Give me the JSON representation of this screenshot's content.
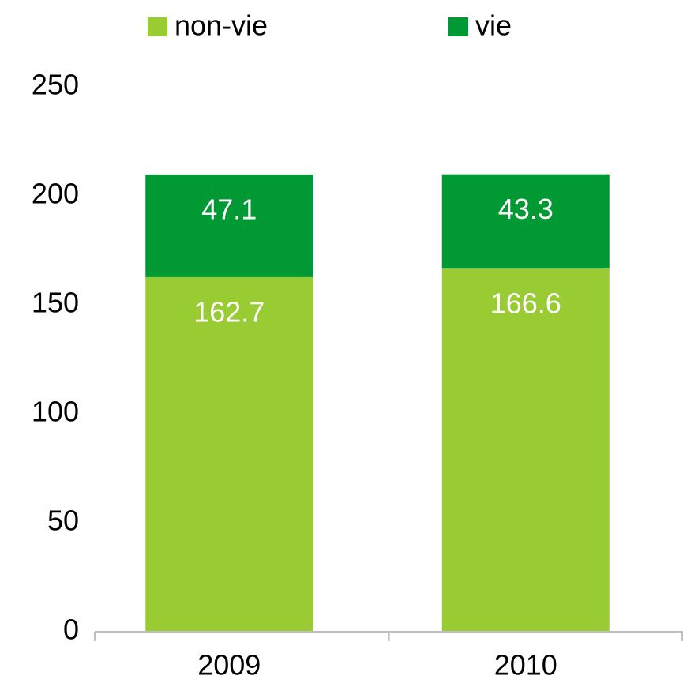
{
  "chart_data": {
    "type": "stacked_bar",
    "categories": [
      "2009",
      "2010"
    ],
    "series": [
      {
        "name": "non-vie",
        "color": "#99cc33",
        "values": [
          162.7,
          166.6
        ]
      },
      {
        "name": "vie",
        "color": "#009933",
        "values": [
          47.1,
          43.3
        ]
      }
    ],
    "ylim": [
      0,
      250
    ],
    "yticks": [
      0,
      50,
      100,
      150,
      200,
      250
    ],
    "grid": false,
    "legend": "top"
  }
}
